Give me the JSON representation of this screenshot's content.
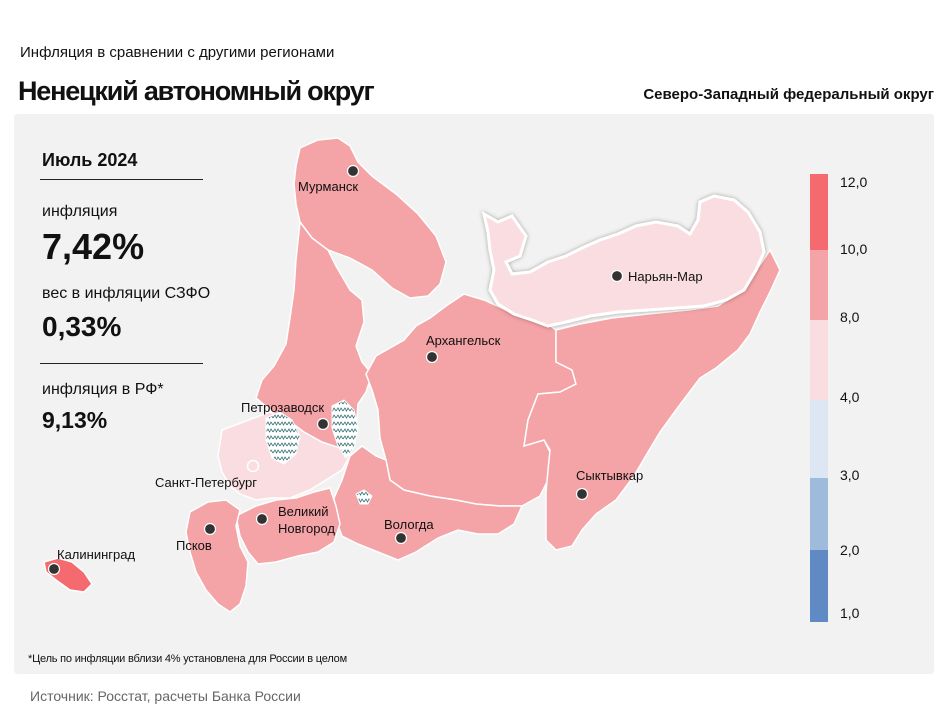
{
  "header": {
    "subtitle": "Инфляция в сравнении с другими регионами",
    "title": "Ненецкий автономный округ",
    "district": "Северо-Западный федеральный округ"
  },
  "stats": {
    "period": "Июль 2024",
    "inflation_label": "инфляция",
    "inflation_value": "7,42%",
    "weight_label": "вес в инфляции СЗФО",
    "weight_value": "0,33%",
    "russia_label": "инфляция в РФ*",
    "russia_value": "9,13%"
  },
  "footnote": "*Цель по инфляции вблизи 4% установлена для России в целом",
  "source": "Источник: Росстат, расчеты Банка России",
  "colors": {
    "bin_10_12": "#f46a6f",
    "bin_8_10": "#f4a3a6",
    "bin_4_8": "#f9dde0",
    "bin_3_4": "#dde6f3",
    "bin_2_3": "#9fbbdc",
    "bin_1_2": "#5f8ac4",
    "background": "#f2f2f2"
  },
  "legend": {
    "labels": [
      "12,0",
      "10,0",
      "8,0",
      "4,0",
      "3,0",
      "2,0",
      "1,0"
    ]
  },
  "cities": [
    {
      "name": "Мурманск"
    },
    {
      "name": "Нарьян-Мар"
    },
    {
      "name": "Архангельск"
    },
    {
      "name": "Петрозаводск"
    },
    {
      "name": "Сыктывкар"
    },
    {
      "name": "Санкт-Петербург"
    },
    {
      "name": "Великий"
    },
    {
      "name": "Новгород"
    },
    {
      "name": "Вологда"
    },
    {
      "name": "Псков"
    },
    {
      "name": "Калининград"
    }
  ]
}
